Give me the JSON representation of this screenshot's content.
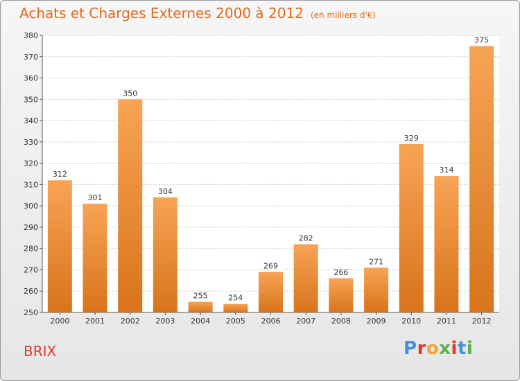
{
  "header": {
    "title": "Achats et Charges Externes 2000 à 2012",
    "subtitle": "(en milliers d'€)"
  },
  "footer": {
    "commune": "BRIX",
    "logo_text": "Proxiti"
  },
  "colors": {
    "title": "#e36a1a",
    "commune": "#e0392b",
    "bar_top": "#f7a455",
    "bar_bottom": "#d8741b",
    "logo": [
      "#4a8fd4",
      "#e0392b",
      "#f2a33a",
      "#5bb050",
      "#e0392b",
      "#4a8fd4",
      "#5bb050"
    ]
  },
  "chart_data": {
    "type": "bar",
    "categories": [
      "2000",
      "2001",
      "2002",
      "2003",
      "2004",
      "2005",
      "2006",
      "2007",
      "2008",
      "2009",
      "2010",
      "2011",
      "2012"
    ],
    "values": [
      312,
      301,
      350,
      304,
      255,
      254,
      269,
      282,
      266,
      271,
      329,
      314,
      375
    ],
    "ylim": [
      250,
      380
    ],
    "yticks": [
      250,
      260,
      270,
      280,
      290,
      300,
      310,
      320,
      330,
      340,
      350,
      360,
      370,
      380
    ],
    "grid": true,
    "xlabel": "",
    "ylabel": ""
  }
}
